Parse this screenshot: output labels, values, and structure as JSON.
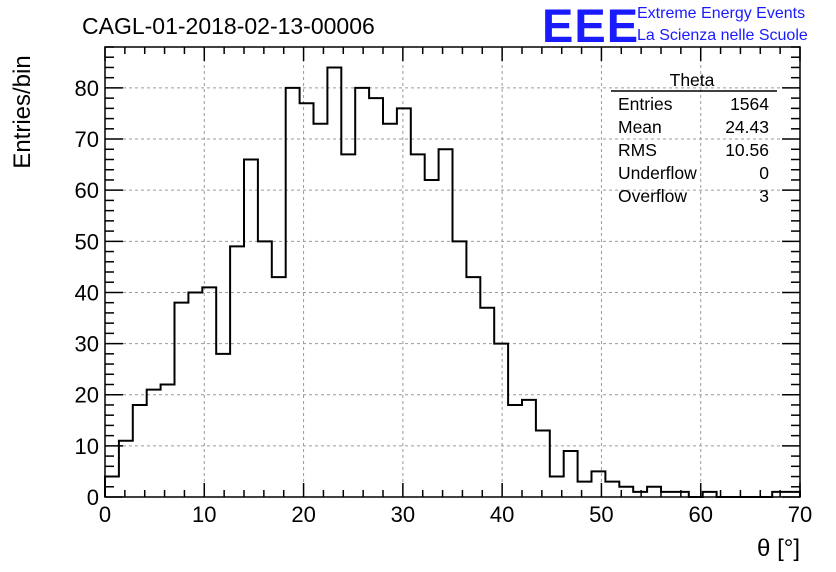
{
  "header": {
    "run_title": "CAGL-01-2018-02-13-00006",
    "logo_text": "EEE",
    "logo_line1": "Extreme Energy Events",
    "logo_line2": "La Scienza nelle Scuole",
    "brand_color": "#1a1aff"
  },
  "stats": {
    "name": "Theta",
    "rows": [
      {
        "label": "Entries",
        "value": "1564"
      },
      {
        "label": "Mean",
        "value": "24.43"
      },
      {
        "label": "RMS",
        "value": "10.56"
      },
      {
        "label": "Underflow",
        "value": "0"
      },
      {
        "label": "Overflow",
        "value": "3"
      }
    ]
  },
  "chart_data": {
    "type": "histogram",
    "title": "CAGL-01-2018-02-13-00006",
    "xlabel": "θ [°]",
    "ylabel": "Entries/bin",
    "xlim": [
      0,
      70
    ],
    "ylim": [
      0,
      88
    ],
    "grid": true,
    "bin_width": 1.4,
    "x_ticks": [
      "0",
      "10",
      "20",
      "30",
      "40",
      "50",
      "60",
      "70"
    ],
    "y_ticks": [
      "0",
      "10",
      "20",
      "30",
      "40",
      "50",
      "60",
      "70",
      "80"
    ],
    "values": [
      4,
      11,
      18,
      21,
      22,
      38,
      40,
      41,
      28,
      49,
      66,
      50,
      43,
      80,
      77,
      73,
      84,
      67,
      80,
      78,
      73,
      76,
      67,
      62,
      68,
      50,
      43,
      37,
      30,
      18,
      19,
      13,
      4,
      9,
      3,
      5,
      3,
      2,
      1,
      2,
      1,
      1,
      0,
      1,
      0,
      0,
      0,
      0,
      1,
      1
    ]
  }
}
